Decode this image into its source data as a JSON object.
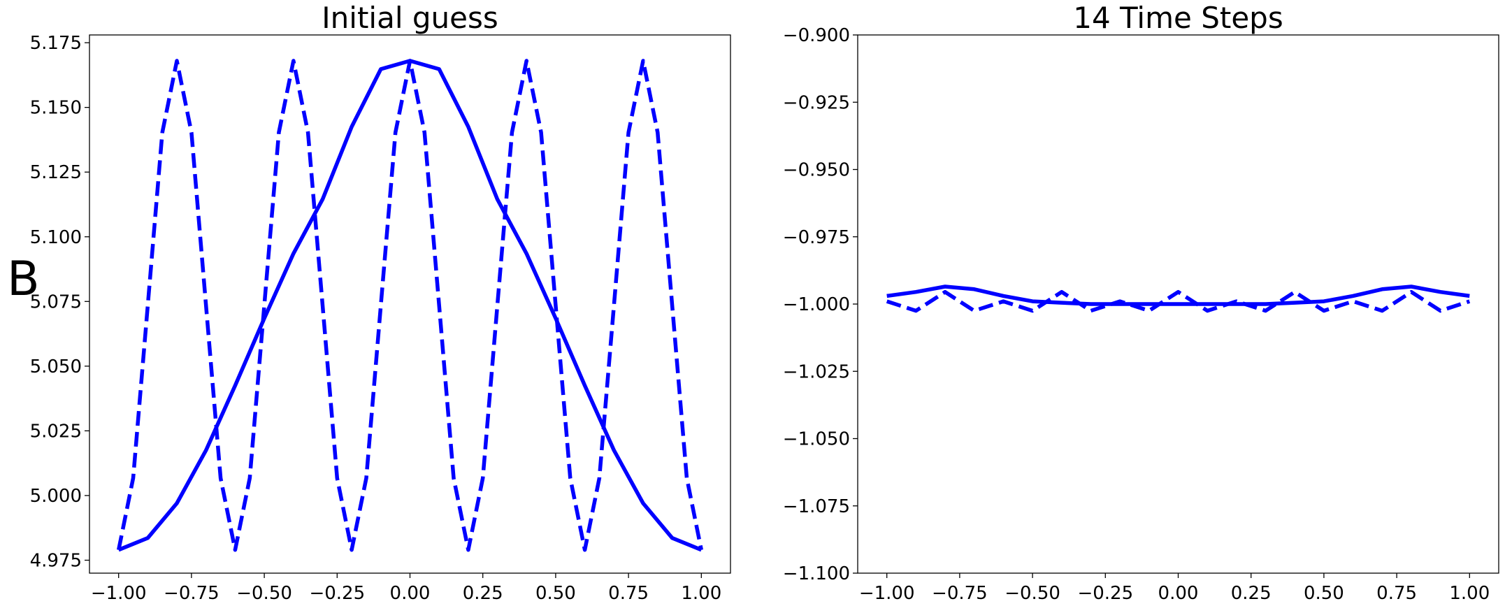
{
  "chart_data": [
    {
      "type": "line",
      "title": "Initial guess",
      "xlabel": "",
      "ylabel": "B",
      "xlim": [
        -1.1,
        1.1
      ],
      "ylim": [
        4.97,
        5.178
      ],
      "xticks": [
        "−1.00",
        "−0.75",
        "−0.50",
        "−0.25",
        "0.00",
        "0.25",
        "0.50",
        "0.75",
        "1.00"
      ],
      "yticks": [
        "4.975",
        "5.000",
        "5.025",
        "5.050",
        "5.075",
        "5.100",
        "5.125",
        "5.150",
        "5.175"
      ],
      "grid": false,
      "color": "#0000ff",
      "series": [
        {
          "style": "solid",
          "x": [
            -1.0,
            -0.9,
            -0.8,
            -0.7,
            -0.6,
            -0.5,
            -0.4,
            -0.3,
            -0.2,
            -0.1,
            0.0,
            0.1,
            0.2,
            0.3,
            0.4,
            0.5,
            0.6,
            0.7,
            0.8,
            0.9,
            1.0
          ],
          "y": [
            4.979,
            4.9836,
            4.997,
            5.0175,
            5.0425,
            5.0685,
            5.0935,
            5.1145,
            5.1425,
            5.1648,
            5.168,
            5.1648,
            5.1425,
            5.1145,
            5.0935,
            5.0685,
            5.0425,
            5.0175,
            4.997,
            4.9836,
            4.979
          ]
        },
        {
          "style": "dashed",
          "x": [
            -1.0,
            -0.95,
            -0.9,
            -0.85,
            -0.8,
            -0.75,
            -0.7,
            -0.65,
            -0.6,
            -0.55,
            -0.5,
            -0.45,
            -0.4,
            -0.35,
            -0.3,
            -0.25,
            -0.2,
            -0.15,
            -0.1,
            -0.05,
            0.0,
            0.05,
            0.1,
            0.15,
            0.2,
            0.25,
            0.3,
            0.35,
            0.4,
            0.45,
            0.5,
            0.55,
            0.6,
            0.65,
            0.7,
            0.75,
            0.8,
            0.85,
            0.9,
            0.95,
            1.0
          ],
          "y": [
            4.979,
            5.0067,
            5.0735,
            5.1403,
            5.168,
            5.1403,
            5.0735,
            5.0067,
            4.979,
            5.0067,
            5.0735,
            5.1403,
            5.168,
            5.1403,
            5.0735,
            5.0067,
            4.979,
            5.0067,
            5.0735,
            5.1403,
            5.168,
            5.1403,
            5.0735,
            5.0067,
            4.979,
            5.0067,
            5.0735,
            5.1403,
            5.168,
            5.1403,
            5.0735,
            5.0067,
            4.979,
            5.0067,
            5.0735,
            5.1403,
            5.168,
            5.1403,
            5.0735,
            5.0067,
            4.979
          ]
        }
      ]
    },
    {
      "type": "line",
      "title": "14 Time Steps",
      "xlabel": "",
      "ylabel": "",
      "xlim": [
        -1.1,
        1.1
      ],
      "ylim": [
        -1.1,
        -0.9
      ],
      "xticks": [
        "−1.00",
        "−0.75",
        "−0.50",
        "−0.25",
        "0.00",
        "0.25",
        "0.50",
        "0.75",
        "1.00"
      ],
      "yticks": [
        "−1.100",
        "−1.075",
        "−1.050",
        "−1.025",
        "−1.000",
        "−0.975",
        "−0.950",
        "−0.925",
        "−0.900"
      ],
      "grid": false,
      "color": "#0000ff",
      "series": [
        {
          "style": "solid",
          "x": [
            -1.0,
            -0.9,
            -0.8,
            -0.7,
            -0.6,
            -0.5,
            -0.4,
            -0.3,
            -0.2,
            -0.1,
            0.0,
            0.1,
            0.2,
            0.3,
            0.4,
            0.5,
            0.6,
            0.7,
            0.8,
            0.9,
            1.0
          ],
          "y": [
            -0.997,
            -0.9955,
            -0.9935,
            -0.9945,
            -0.997,
            -0.999,
            -0.9995,
            -1.0,
            -1.0,
            -1.0,
            -1.0,
            -1.0,
            -1.0,
            -1.0,
            -0.9995,
            -0.999,
            -0.997,
            -0.9945,
            -0.9935,
            -0.9955,
            -0.997
          ]
        },
        {
          "style": "dashed",
          "x": [
            -1.0,
            -0.9,
            -0.8,
            -0.7,
            -0.6,
            -0.5,
            -0.4,
            -0.3,
            -0.2,
            -0.1,
            0.0,
            0.1,
            0.2,
            0.3,
            0.4,
            0.5,
            0.6,
            0.7,
            0.8,
            0.9,
            1.0
          ],
          "y": [
            -0.999,
            -1.0025,
            -0.9955,
            -1.0025,
            -0.999,
            -1.0025,
            -0.9955,
            -1.0025,
            -0.999,
            -1.0025,
            -0.9955,
            -1.0025,
            -0.999,
            -1.0025,
            -0.9955,
            -1.0025,
            -0.999,
            -1.0025,
            -0.9955,
            -1.0025,
            -0.999
          ]
        }
      ]
    }
  ]
}
